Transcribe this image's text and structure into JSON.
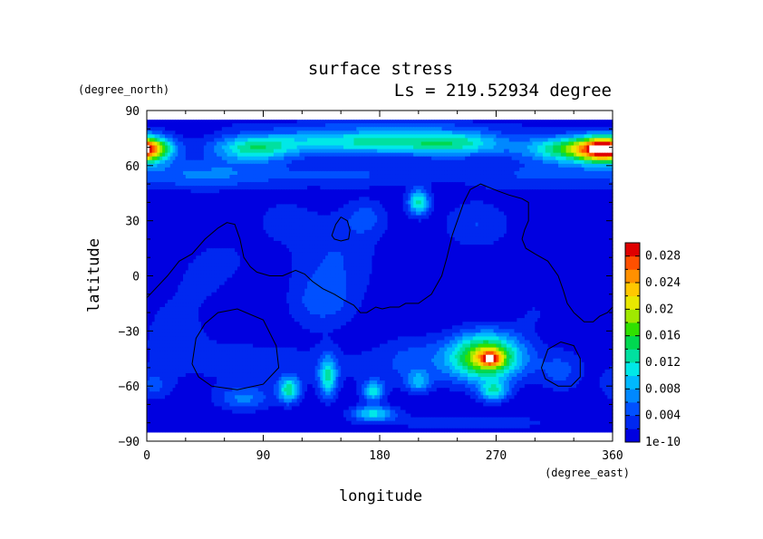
{
  "chart_data": {
    "type": "heatmap",
    "title": "surface stress",
    "subtitle": "Ls = 219.52934 degree",
    "xlabel": "longitude",
    "ylabel": "latitude",
    "x_unit": "(degree_east)",
    "y_unit": "(degree_north)",
    "xlim": [
      0,
      360
    ],
    "ylim": [
      -90,
      90
    ],
    "data_lat_range": [
      -85,
      85
    ],
    "x_ticks": [
      "0",
      "90",
      "180",
      "270",
      "360"
    ],
    "y_ticks": [
      "90",
      "60",
      "30",
      "0",
      "−30",
      "−60",
      "−90"
    ],
    "colorbar": {
      "labels": [
        "1e-10",
        "0.004",
        "0.008",
        "0.012",
        "0.016",
        "0.02",
        "0.024",
        "0.028"
      ],
      "levels": [
        0,
        0.002,
        0.004,
        0.006,
        0.008,
        0.01,
        0.012,
        0.014,
        0.016,
        0.018,
        0.02,
        0.022,
        0.024,
        0.026,
        0.028,
        0.03
      ],
      "colors": [
        "#0000e0",
        "#0028f0",
        "#0050ff",
        "#0088ff",
        "#00b8ff",
        "#00e8e8",
        "#00e0a0",
        "#00d850",
        "#30e000",
        "#a0e800",
        "#e8e800",
        "#ffc800",
        "#ff9000",
        "#ff5000",
        "#e00000"
      ],
      "over_color": "#ffffff"
    },
    "features": [
      {
        "lon": 0,
        "lat": 69,
        "slon": 14,
        "slat": 5,
        "amp": 0.013
      },
      {
        "lon": 352,
        "lat": 69,
        "slon": 14,
        "slat": 5,
        "amp": 0.013
      },
      {
        "lon": 82,
        "lat": 69,
        "slon": 22,
        "slat": 5,
        "amp": 0.011
      },
      {
        "lon": 165,
        "lat": 73,
        "slon": 55,
        "slat": 5,
        "amp": 0.012
      },
      {
        "lon": 240,
        "lat": 72,
        "slon": 30,
        "slat": 5,
        "amp": 0.009
      },
      {
        "lon": 330,
        "lat": 69,
        "slon": 25,
        "slat": 5,
        "amp": 0.016
      },
      {
        "lon": 185,
        "lat": 82,
        "slon": 120,
        "slat": 2.5,
        "amp": 0.002
      },
      {
        "lon": 45,
        "lat": 55,
        "slon": 40,
        "slat": 6,
        "amp": 0.006
      },
      {
        "lon": 160,
        "lat": 55,
        "slon": 50,
        "slat": 5,
        "amp": 0.004
      },
      {
        "lon": 300,
        "lat": 55,
        "slon": 40,
        "slat": 6,
        "amp": 0.004
      },
      {
        "lon": 210,
        "lat": 40,
        "slon": 6,
        "slat": 5,
        "amp": 0.012
      },
      {
        "lon": 170,
        "lat": 32,
        "slon": 12,
        "slat": 7,
        "amp": 0.004
      },
      {
        "lon": 255,
        "lat": 28,
        "slon": 20,
        "slat": 10,
        "amp": 0.004
      },
      {
        "lon": 105,
        "lat": 30,
        "slon": 15,
        "slat": 8,
        "amp": 0.003
      },
      {
        "lon": 145,
        "lat": 10,
        "slon": 25,
        "slat": 18,
        "amp": 0.004
      },
      {
        "lon": 60,
        "lat": 10,
        "slon": 20,
        "slat": 10,
        "amp": 0.002
      },
      {
        "lon": 40,
        "lat": -5,
        "slon": 20,
        "slat": 12,
        "amp": 0.002
      },
      {
        "lon": 135,
        "lat": -15,
        "slon": 18,
        "slat": 10,
        "amp": 0.004
      },
      {
        "lon": 300,
        "lat": -20,
        "slon": 15,
        "slat": 8,
        "amp": 0.002
      },
      {
        "lon": 20,
        "lat": -30,
        "slon": 15,
        "slat": 12,
        "amp": 0.003
      },
      {
        "lon": 262,
        "lat": -44,
        "slon": 20,
        "slat": 9,
        "amp": 0.02
      },
      {
        "lon": 266,
        "lat": -45,
        "slon": 6,
        "slat": 3,
        "amp": 0.012
      },
      {
        "lon": 268,
        "lat": -63,
        "slon": 8,
        "slat": 4,
        "amp": 0.01
      },
      {
        "lon": 205,
        "lat": -45,
        "slon": 18,
        "slat": 10,
        "amp": 0.003
      },
      {
        "lon": 110,
        "lat": -62,
        "slon": 6,
        "slat": 5,
        "amp": 0.012
      },
      {
        "lon": 140,
        "lat": -55,
        "slon": 5,
        "slat": 8,
        "amp": 0.011
      },
      {
        "lon": 175,
        "lat": -63,
        "slon": 6,
        "slat": 4,
        "amp": 0.01
      },
      {
        "lon": 210,
        "lat": -58,
        "slon": 6,
        "slat": 4,
        "amp": 0.007
      },
      {
        "lon": 175,
        "lat": -75,
        "slon": 12,
        "slat": 3,
        "amp": 0.01
      },
      {
        "lon": 75,
        "lat": -67,
        "slon": 15,
        "slat": 5,
        "amp": 0.006
      },
      {
        "lon": 5,
        "lat": -60,
        "slon": 10,
        "slat": 6,
        "amp": 0.004
      },
      {
        "lon": 320,
        "lat": -52,
        "slon": 12,
        "slat": 8,
        "amp": 0.004
      },
      {
        "lon": 250,
        "lat": -80,
        "slon": 60,
        "slat": 4,
        "amp": 0.003
      },
      {
        "lon": 180,
        "lat": -50,
        "slon": 80,
        "slat": 10,
        "amp": 0.002
      },
      {
        "lon": 60,
        "lat": -45,
        "slon": 50,
        "slat": 12,
        "amp": 0.002
      }
    ],
    "contours": [
      {
        "points": [
          [
            0,
            -12
          ],
          [
            8,
            -6
          ],
          [
            16,
            0
          ],
          [
            25,
            8
          ],
          [
            35,
            12
          ],
          [
            45,
            20
          ],
          [
            55,
            26
          ],
          [
            62,
            29
          ],
          [
            68,
            28
          ],
          [
            72,
            20
          ],
          [
            75,
            10
          ],
          [
            80,
            5
          ],
          [
            85,
            2
          ],
          [
            95,
            0
          ],
          [
            105,
            0
          ],
          [
            115,
            3
          ],
          [
            122,
            1
          ],
          [
            128,
            -3
          ],
          [
            136,
            -7
          ],
          [
            145,
            -10
          ],
          [
            152,
            -13
          ],
          [
            160,
            -16
          ],
          [
            165,
            -20
          ],
          [
            170,
            -20
          ],
          [
            177,
            -17
          ],
          [
            182,
            -18
          ],
          [
            188,
            -17
          ],
          [
            195,
            -17
          ],
          [
            200,
            -15
          ],
          [
            210,
            -15
          ],
          [
            220,
            -10
          ],
          [
            228,
            0
          ],
          [
            232,
            10
          ],
          [
            236,
            22
          ],
          [
            240,
            30
          ],
          [
            245,
            40
          ],
          [
            250,
            47
          ],
          [
            258,
            50
          ],
          [
            265,
            48
          ],
          [
            272,
            46
          ],
          [
            280,
            44
          ],
          [
            290,
            42
          ],
          [
            295,
            40
          ],
          [
            295,
            30
          ],
          [
            292,
            25
          ],
          [
            290,
            20
          ],
          [
            293,
            15
          ],
          [
            300,
            12
          ],
          [
            310,
            8
          ],
          [
            318,
            0
          ],
          [
            322,
            -8
          ],
          [
            325,
            -15
          ],
          [
            330,
            -20
          ],
          [
            338,
            -25
          ],
          [
            345,
            -25
          ],
          [
            350,
            -22
          ],
          [
            356,
            -20
          ],
          [
            360,
            -17
          ]
        ],
        "closed": false
      },
      {
        "points": [
          [
            143,
            22
          ],
          [
            146,
            28
          ],
          [
            150,
            32
          ],
          [
            155,
            30
          ],
          [
            157,
            25
          ],
          [
            156,
            20
          ],
          [
            150,
            19
          ],
          [
            145,
            20
          ]
        ],
        "closed": true
      },
      {
        "points": [
          [
            35,
            -48
          ],
          [
            38,
            -34
          ],
          [
            45,
            -26
          ],
          [
            55,
            -20
          ],
          [
            70,
            -18
          ],
          [
            90,
            -24
          ],
          [
            100,
            -38
          ],
          [
            102,
            -50
          ],
          [
            90,
            -59
          ],
          [
            70,
            -62
          ],
          [
            50,
            -60
          ],
          [
            40,
            -55
          ]
        ],
        "closed": true
      },
      {
        "points": [
          [
            305,
            -50
          ],
          [
            310,
            -40
          ],
          [
            320,
            -36
          ],
          [
            330,
            -38
          ],
          [
            335,
            -45
          ],
          [
            335,
            -55
          ],
          [
            328,
            -60
          ],
          [
            318,
            -60
          ],
          [
            308,
            -56
          ]
        ],
        "closed": true
      }
    ]
  }
}
